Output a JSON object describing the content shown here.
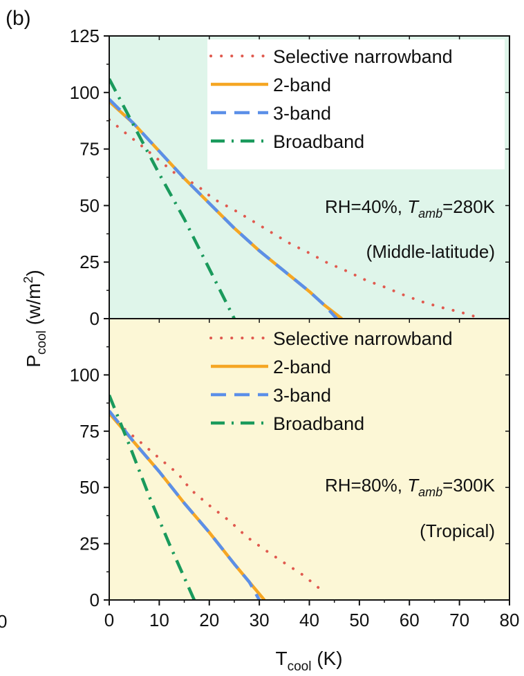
{
  "panel_label": "(b)",
  "stray_label": "0",
  "colors": {
    "top_bg": "#dff5ea",
    "bottom_bg": "#fcf7d6",
    "selective": "#e05a4f",
    "two_band": "#f5a623",
    "three_band": "#5b8fe8",
    "broadband": "#1a9a5c"
  },
  "chart_data": [
    {
      "type": "line",
      "xlim": [
        0,
        80
      ],
      "ylim": [
        0,
        125
      ],
      "y_ticks": [
        0,
        25,
        50,
        75,
        100,
        125
      ],
      "legend": "top-right",
      "annotation": {
        "pre": "RH=40%, ",
        "t": "T",
        "sub": "amb",
        "post": "=280K"
      },
      "region": "(Middle-latitude)",
      "series": [
        {
          "name": "Selective narrowband",
          "style": "dotted",
          "color_key": "selective",
          "points": [
            [
              0,
              88
            ],
            [
              3.3,
              82
            ],
            [
              6.7,
              76
            ],
            [
              10,
              70
            ],
            [
              13.3,
              64
            ],
            [
              17.5,
              59
            ],
            [
              20.8,
              53
            ],
            [
              25,
              48
            ],
            [
              28.8,
              43
            ],
            [
              32.5,
              38
            ],
            [
              36.3,
              33
            ],
            [
              40,
              29
            ],
            [
              43.3,
              25
            ],
            [
              47.5,
              21
            ],
            [
              51.3,
              17
            ],
            [
              55,
              14
            ],
            [
              58.8,
              10.5
            ],
            [
              62.5,
              7.5
            ],
            [
              66.3,
              5
            ],
            [
              70,
              3
            ],
            [
              74.5,
              0
            ]
          ]
        },
        {
          "name": "2-band",
          "style": "solid",
          "color_key": "two_band",
          "points": [
            [
              0,
              96
            ],
            [
              5,
              86
            ],
            [
              10,
              74
            ],
            [
              15,
              62
            ],
            [
              20,
              51
            ],
            [
              25,
              40
            ],
            [
              30,
              30
            ],
            [
              35,
              21
            ],
            [
              40,
              12
            ],
            [
              43,
              6
            ],
            [
              46.5,
              0
            ]
          ]
        },
        {
          "name": "3-band",
          "style": "dashed",
          "color_key": "three_band",
          "points": [
            [
              0,
              97
            ],
            [
              5,
              86
            ],
            [
              10,
              74
            ],
            [
              15,
              62
            ],
            [
              20,
              51
            ],
            [
              25,
              40
            ],
            [
              30,
              30
            ],
            [
              35,
              21
            ],
            [
              40,
              12
            ],
            [
              43,
              6
            ],
            [
              45.5,
              0
            ]
          ]
        },
        {
          "name": "Broadband",
          "style": "dashdot",
          "color_key": "broadband",
          "points": [
            [
              0,
              106
            ],
            [
              5,
              85
            ],
            [
              10,
              64
            ],
            [
              15,
              44
            ],
            [
              20,
              22
            ],
            [
              25,
              0
            ]
          ]
        }
      ]
    },
    {
      "type": "line",
      "xlabel": {
        "main": "T",
        "sub": "cool",
        "post": " (K)"
      },
      "ylabel": {
        "main": "P",
        "sub": "cool",
        "mid": " (w/m",
        "sup": "2",
        "post": ")"
      },
      "xlim": [
        0,
        80
      ],
      "ylim": [
        0,
        125
      ],
      "x_ticks": [
        0,
        10,
        20,
        30,
        40,
        50,
        60,
        70,
        80
      ],
      "y_ticks": [
        0,
        25,
        50,
        75,
        100
      ],
      "legend": "top-right",
      "annotation": {
        "pre": "RH=80%, ",
        "t": "T",
        "sub": "amb",
        "post": "=300K"
      },
      "region": "(Tropical)",
      "series": [
        {
          "name": "Selective narrowband",
          "style": "dotted",
          "color_key": "selective",
          "points": [
            [
              0,
              82
            ],
            [
              2.5,
              77
            ],
            [
              6.3,
              70
            ],
            [
              10,
              63
            ],
            [
              13.8,
              56
            ],
            [
              16.3,
              49
            ],
            [
              20,
              42
            ],
            [
              24.1,
              35
            ],
            [
              27.5,
              28
            ],
            [
              31.3,
              22
            ],
            [
              35,
              16.5
            ],
            [
              38.8,
              11
            ],
            [
              41.8,
              5.5
            ]
          ]
        },
        {
          "name": "2-band",
          "style": "solid",
          "color_key": "two_band",
          "points": [
            [
              0,
              83
            ],
            [
              5,
              70
            ],
            [
              10,
              57
            ],
            [
              15,
              43
            ],
            [
              20,
              30
            ],
            [
              25,
              16
            ],
            [
              28,
              8
            ],
            [
              31,
              0
            ]
          ]
        },
        {
          "name": "3-band",
          "style": "dashed",
          "color_key": "three_band",
          "points": [
            [
              0,
              84
            ],
            [
              5,
              70
            ],
            [
              10,
              57
            ],
            [
              15,
              43
            ],
            [
              20,
              30
            ],
            [
              25,
              16
            ],
            [
              28,
              8
            ],
            [
              30,
              0
            ]
          ]
        },
        {
          "name": "Broadband",
          "style": "dashdot",
          "color_key": "broadband",
          "points": [
            [
              0,
              91
            ],
            [
              4,
              69
            ],
            [
              8,
              46
            ],
            [
              12,
              25
            ],
            [
              17,
              0
            ]
          ]
        }
      ]
    }
  ]
}
